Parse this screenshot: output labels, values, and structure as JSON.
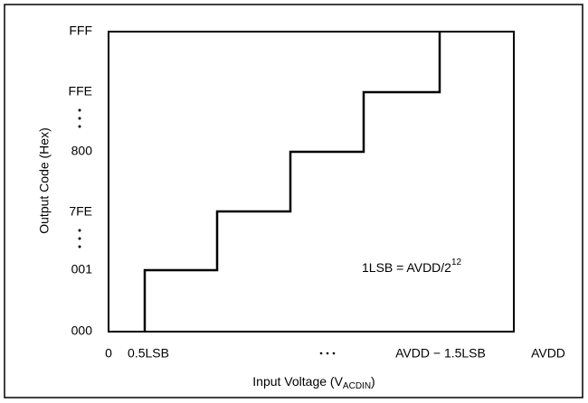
{
  "diagram": {
    "y_axis": {
      "title": "Output Code (Hex)",
      "labels": [
        "FFF",
        "FFE",
        "800",
        "7FE",
        "001",
        "000"
      ]
    },
    "x_axis": {
      "title": {
        "text": "Input Voltage (V",
        "subscript": "ACDIN",
        "suffix": ")"
      },
      "labels": [
        "0",
        "0.5LSB",
        "AVDD − 1.5LSB",
        "AVDD"
      ]
    },
    "annotation": {
      "text": "1LSB = AVDD/2",
      "superscript": "12"
    }
  }
}
